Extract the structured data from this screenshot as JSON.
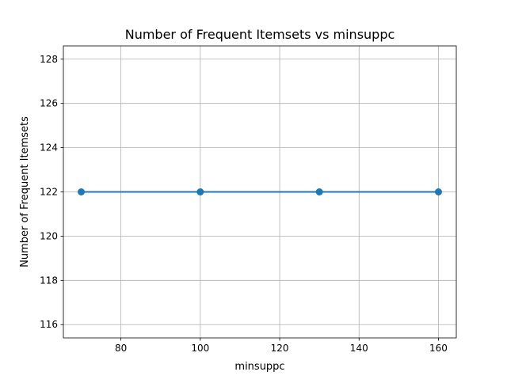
{
  "chart_data": {
    "type": "line",
    "title": "Number of Frequent Itemsets vs minsuppc",
    "xlabel": "minsuppc",
    "ylabel": "Number of Frequent Itemsets",
    "x": [
      70,
      100,
      130,
      160
    ],
    "series": [
      {
        "values": [
          122,
          122,
          122,
          122
        ],
        "color": "#1f77b4",
        "marker": "circle"
      }
    ],
    "xlim": [
      65.5,
      164.5
    ],
    "ylim": [
      115.4,
      128.6
    ],
    "xticks": [
      80,
      100,
      120,
      140,
      160
    ],
    "yticks": [
      116,
      118,
      120,
      122,
      124,
      126,
      128
    ],
    "grid": true
  }
}
